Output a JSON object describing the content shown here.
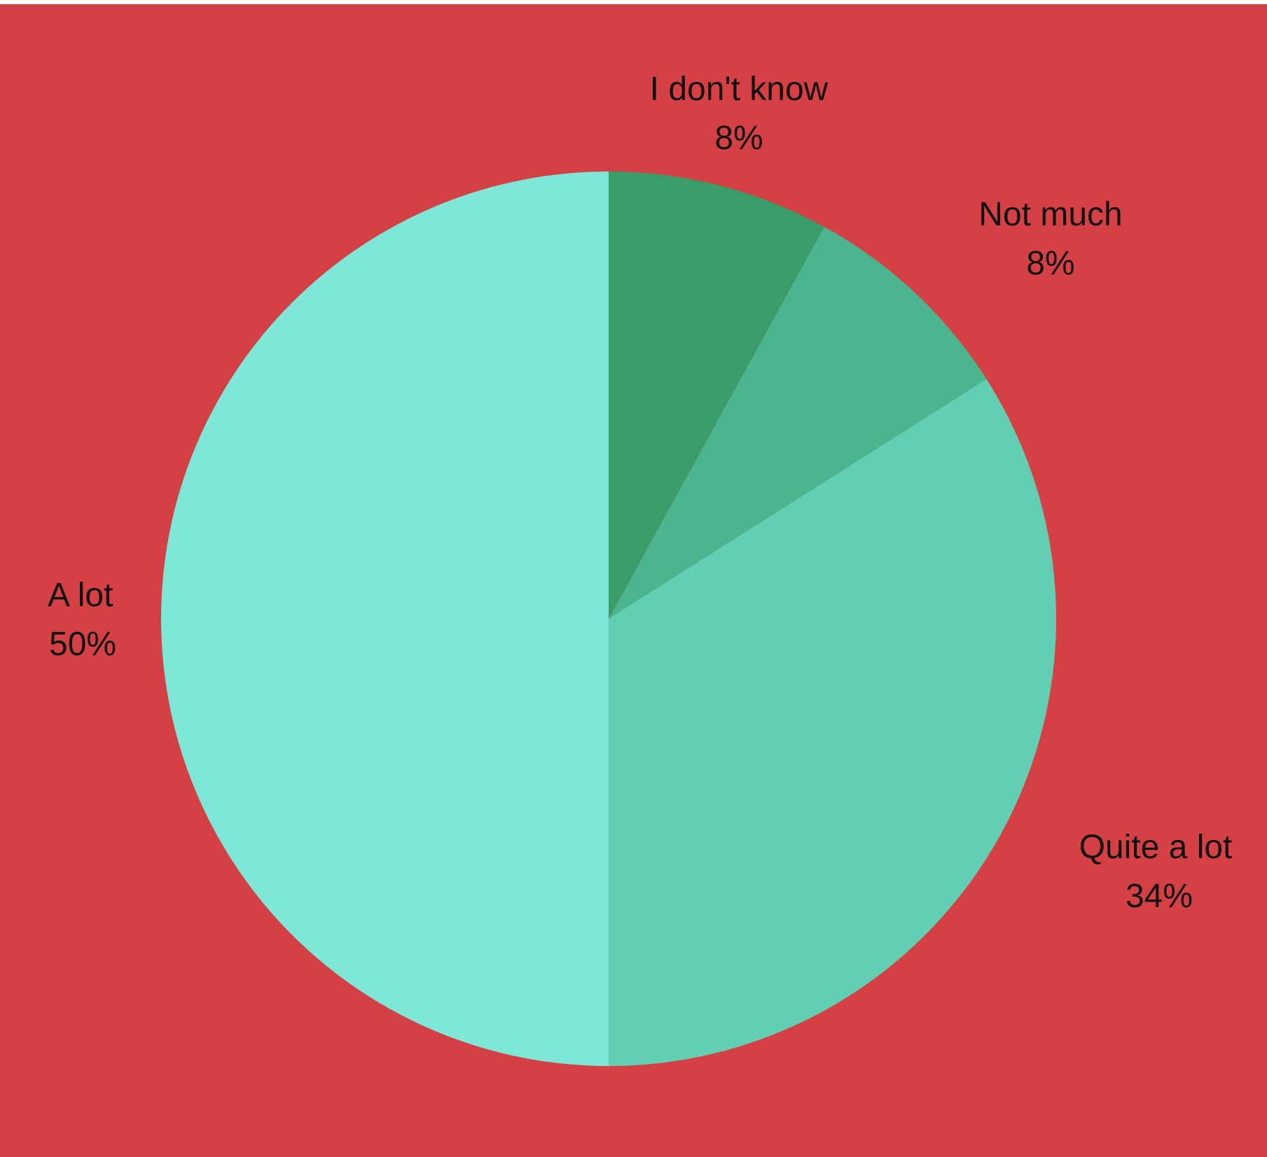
{
  "chart_data": {
    "type": "pie",
    "background_color": "#d44043",
    "slices": [
      {
        "label": "I don't know",
        "value": 8,
        "value_label": "8%",
        "color": "#3a9c68"
      },
      {
        "label": "Not much",
        "value": 8,
        "value_label": "8%",
        "color": "#4ab58e"
      },
      {
        "label": "Quite a lot",
        "value": 34,
        "value_label": "34%",
        "color": "#62cfb3"
      },
      {
        "label": "A lot",
        "value": 50,
        "value_label": "50%",
        "color": "#7ee7d8"
      }
    ]
  }
}
